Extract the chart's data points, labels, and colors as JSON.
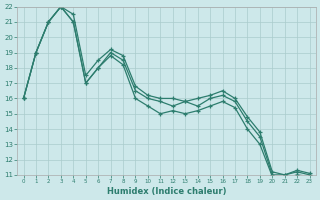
{
  "xlabel": "Humidex (Indice chaleur)",
  "ylabel": "",
  "xlim": [
    -0.5,
    23.5
  ],
  "ylim": [
    11,
    22
  ],
  "xticks": [
    0,
    1,
    2,
    3,
    4,
    5,
    6,
    7,
    8,
    9,
    10,
    11,
    12,
    13,
    14,
    15,
    16,
    17,
    18,
    19,
    20,
    21,
    22,
    23
  ],
  "yticks": [
    11,
    12,
    13,
    14,
    15,
    16,
    17,
    18,
    19,
    20,
    21,
    22
  ],
  "line_color": "#2d7d6e",
  "bg_color": "#cde8ea",
  "grid_color": "#aacccc",
  "line1_y": [
    16,
    19,
    21,
    22,
    21,
    17,
    18,
    19,
    18.5,
    16.5,
    16,
    15.8,
    15.5,
    15.8,
    15.5,
    16,
    16.2,
    15.8,
    14.5,
    13.5,
    11,
    11,
    11.2,
    11
  ],
  "line2_y": [
    16,
    19,
    21,
    22,
    21.5,
    17.5,
    18.5,
    19.2,
    18.8,
    16.8,
    16.2,
    16.0,
    16.0,
    15.8,
    16.0,
    16.2,
    16.5,
    16.0,
    14.8,
    13.8,
    11.2,
    11,
    11.3,
    11.1
  ],
  "line3_y": [
    16,
    19,
    21,
    22,
    21,
    17,
    18,
    18.8,
    18.2,
    16.0,
    15.5,
    15.0,
    15.2,
    15.0,
    15.2,
    15.5,
    15.8,
    15.4,
    14.0,
    13.0,
    10.9,
    10.8,
    11.0,
    10.9
  ]
}
